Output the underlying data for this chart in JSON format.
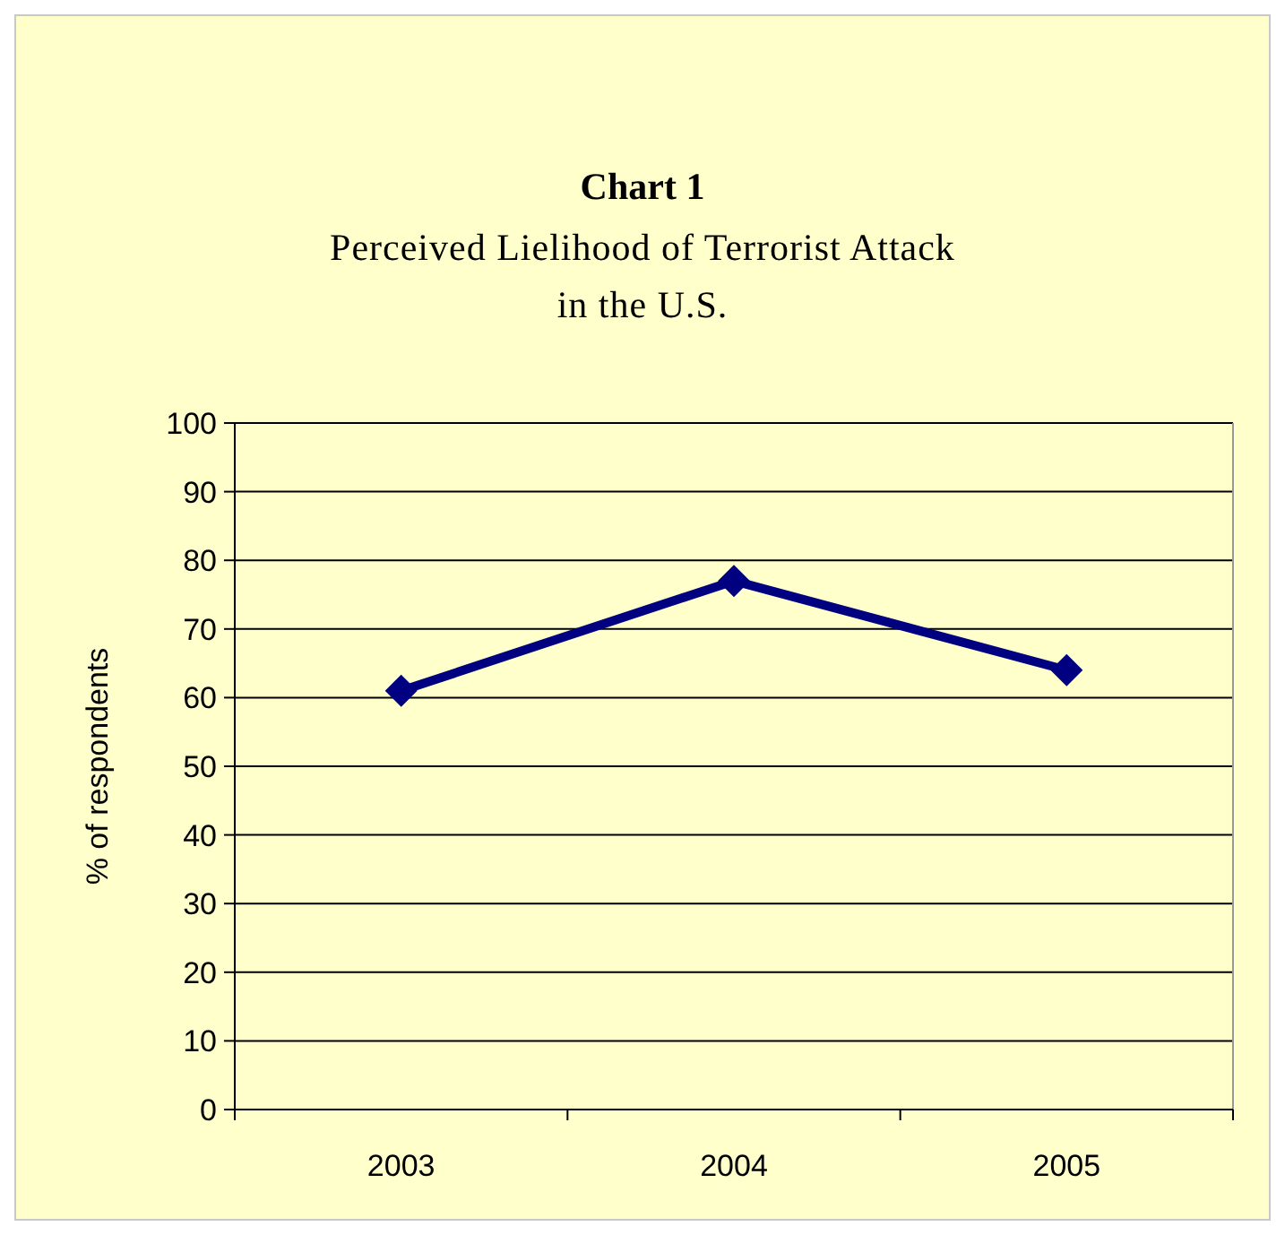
{
  "chart_data": {
    "type": "line",
    "title": "Chart 1",
    "subtitle": "Perceived Lielihood of Terrorist Attack\nin the U.S.",
    "ylabel": "% of respondents",
    "categories": [
      "2003",
      "2004",
      "2005"
    ],
    "series": [
      {
        "color": "#000080",
        "values": [
          61,
          77,
          64
        ]
      }
    ],
    "ylim": [
      0,
      100
    ],
    "yticks": [
      0,
      10,
      20,
      30,
      40,
      50,
      60,
      70,
      80,
      90,
      100
    ],
    "grid": "y",
    "marker": "diamond",
    "line_style": "solid"
  }
}
